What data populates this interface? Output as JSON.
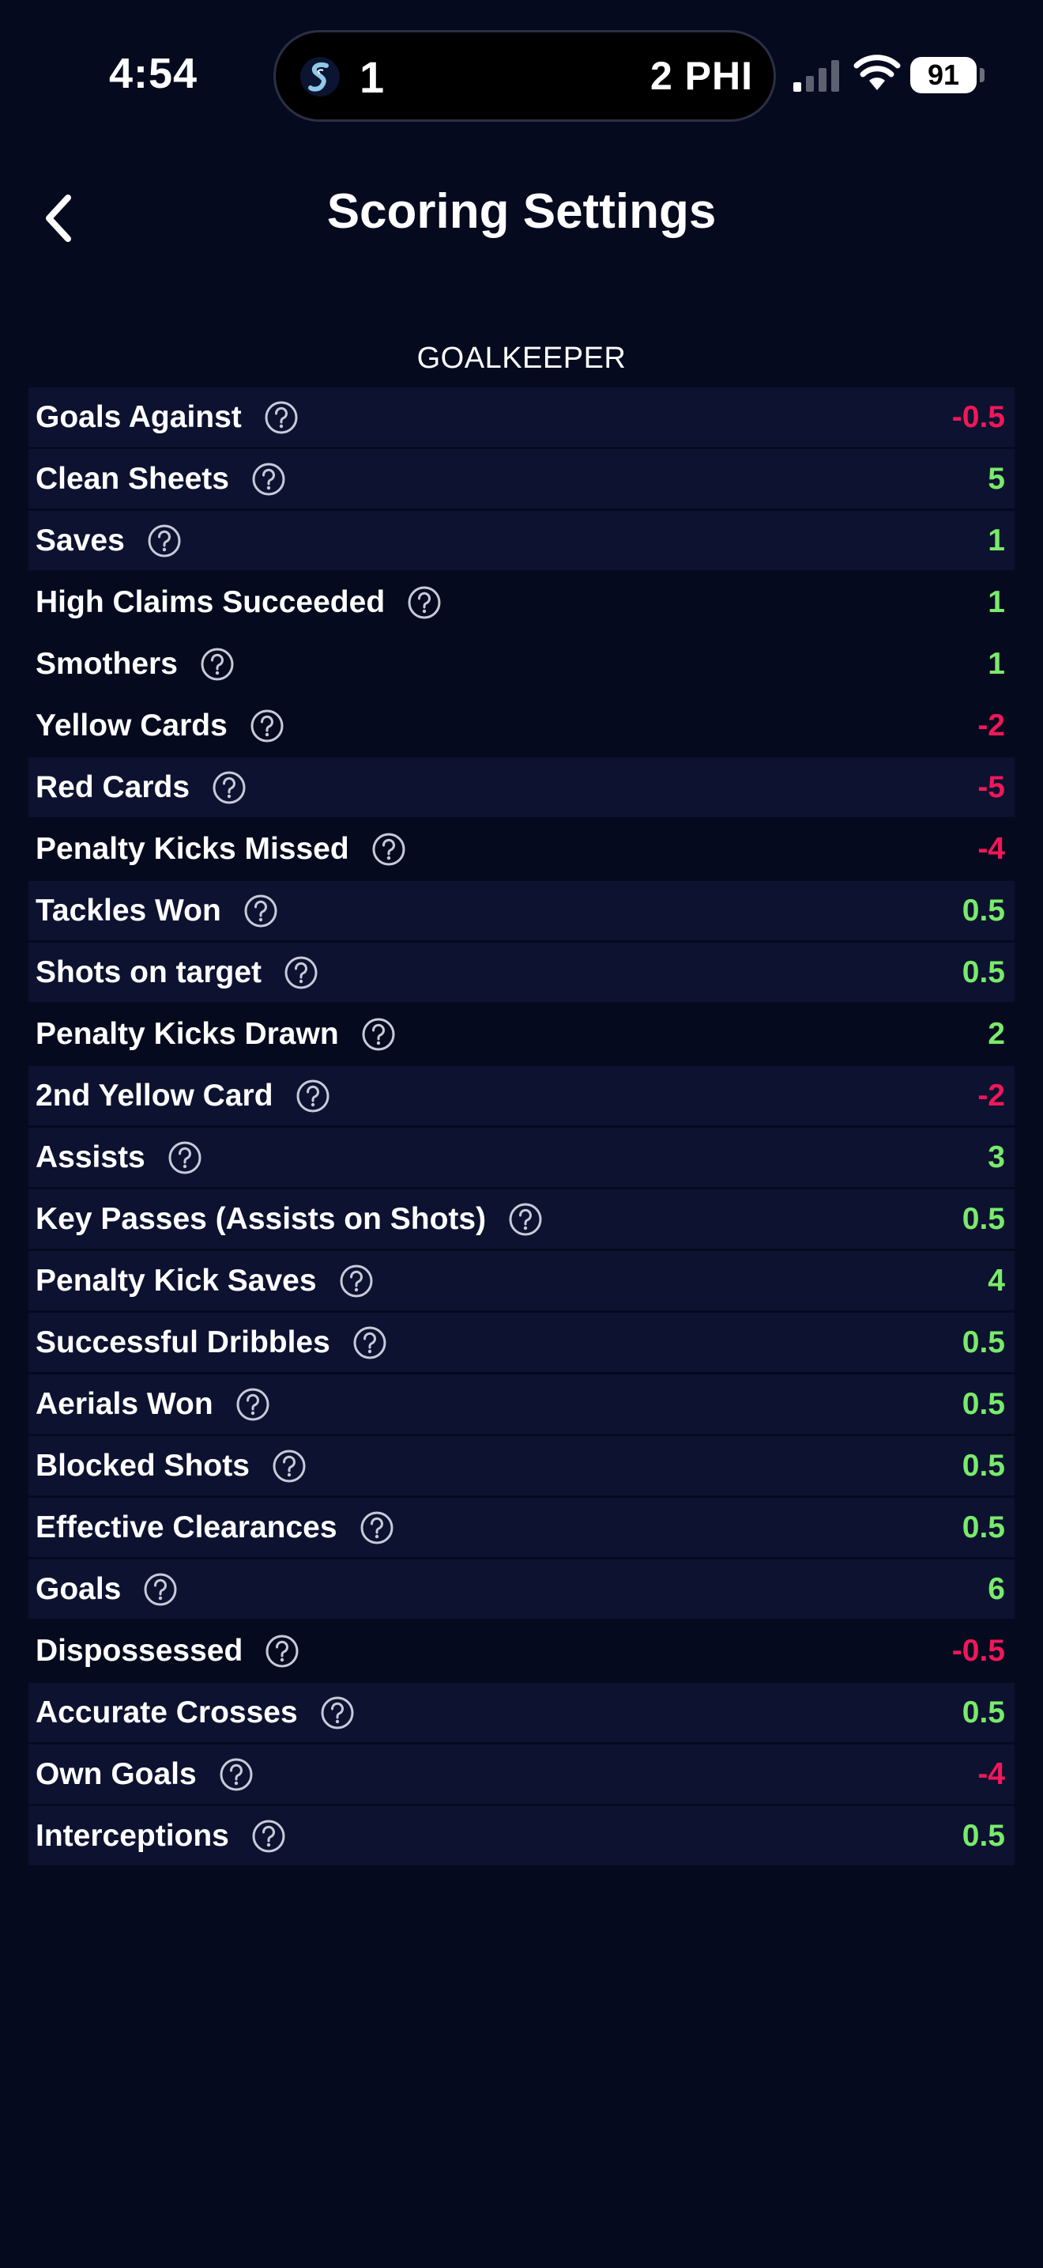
{
  "status_bar": {
    "time": "4:54",
    "score_home": "1",
    "score_away": "2 PHI",
    "battery": "91"
  },
  "header": {
    "title": "Scoring Settings"
  },
  "section": {
    "heading": "GOALKEEPER",
    "rows": [
      {
        "label": "Goals Against",
        "value": "-0.5",
        "sign": "neg",
        "shade": true
      },
      {
        "label": "Clean Sheets",
        "value": "5",
        "sign": "pos",
        "shade": true
      },
      {
        "label": "Saves",
        "value": "1",
        "sign": "pos",
        "shade": true
      },
      {
        "label": "High Claims Succeeded",
        "value": "1",
        "sign": "pos",
        "shade": false
      },
      {
        "label": "Smothers",
        "value": "1",
        "sign": "pos",
        "shade": false
      },
      {
        "label": "Yellow Cards",
        "value": "-2",
        "sign": "neg",
        "shade": false
      },
      {
        "label": "Red Cards",
        "value": "-5",
        "sign": "neg",
        "shade": true
      },
      {
        "label": "Penalty Kicks Missed",
        "value": "-4",
        "sign": "neg",
        "shade": false
      },
      {
        "label": "Tackles Won",
        "value": "0.5",
        "sign": "pos",
        "shade": true
      },
      {
        "label": "Shots on target",
        "value": "0.5",
        "sign": "pos",
        "shade": true
      },
      {
        "label": "Penalty Kicks Drawn",
        "value": "2",
        "sign": "pos",
        "shade": false
      },
      {
        "label": "2nd Yellow Card",
        "value": "-2",
        "sign": "neg",
        "shade": true
      },
      {
        "label": "Assists",
        "value": "3",
        "sign": "pos",
        "shade": true
      },
      {
        "label": "Key Passes (Assists on Shots)",
        "value": "0.5",
        "sign": "pos",
        "shade": true
      },
      {
        "label": "Penalty Kick Saves",
        "value": "4",
        "sign": "pos",
        "shade": true
      },
      {
        "label": "Successful Dribbles",
        "value": "0.5",
        "sign": "pos",
        "shade": true
      },
      {
        "label": "Aerials Won",
        "value": "0.5",
        "sign": "pos",
        "shade": true
      },
      {
        "label": "Blocked Shots",
        "value": "0.5",
        "sign": "pos",
        "shade": true
      },
      {
        "label": "Effective Clearances",
        "value": "0.5",
        "sign": "pos",
        "shade": true
      },
      {
        "label": "Goals",
        "value": "6",
        "sign": "pos",
        "shade": true
      },
      {
        "label": "Dispossessed",
        "value": "-0.5",
        "sign": "neg",
        "shade": false
      },
      {
        "label": "Accurate Crosses",
        "value": "0.5",
        "sign": "pos",
        "shade": true
      },
      {
        "label": "Own Goals",
        "value": "-4",
        "sign": "neg",
        "shade": true
      },
      {
        "label": "Interceptions",
        "value": "0.5",
        "sign": "pos",
        "shade": true
      }
    ]
  },
  "icons": {
    "back": "chevron-left-icon",
    "help": "question-circle-icon"
  },
  "colors": {
    "background": "#060a1e",
    "row_shade": "#0d1230",
    "positive": "#79ea6b",
    "negative": "#f0175a"
  }
}
